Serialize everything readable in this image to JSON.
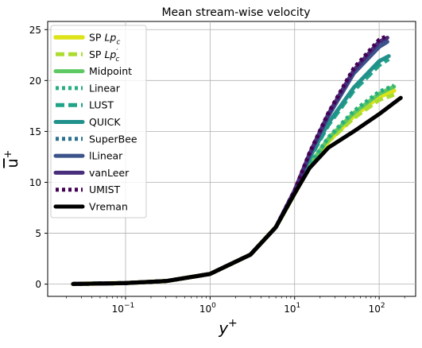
{
  "chart_data": {
    "type": "line",
    "title": "Mean stream-wise velocity",
    "xlabel": "y",
    "xlabel_sup": "+",
    "ylabel": "u",
    "ylabel_sup": "+",
    "xscale": "log",
    "xlim": [
      0.012,
      270
    ],
    "ylim": [
      -1.2,
      25.8
    ],
    "xticks": [
      {
        "value": 0.1,
        "base": "10",
        "exp": "−1"
      },
      {
        "value": 1,
        "base": "10",
        "exp": "0"
      },
      {
        "value": 10,
        "base": "10",
        "exp": "1"
      },
      {
        "value": 100,
        "base": "10",
        "exp": "2"
      }
    ],
    "yticks": [
      {
        "value": 0,
        "label": "0"
      },
      {
        "value": 5,
        "label": "5"
      },
      {
        "value": 10,
        "label": "10"
      },
      {
        "value": 15,
        "label": "15"
      },
      {
        "value": 20,
        "label": "20"
      },
      {
        "value": 25,
        "label": "25"
      }
    ],
    "grid": true,
    "legend_position": "upper-left",
    "series": [
      {
        "name": "SP Lp",
        "name_sub": "c",
        "name_prime": false,
        "color": "#dde318",
        "dash": "solid",
        "width": 5.5,
        "x": [
          0.024,
          0.1,
          0.3,
          1,
          3,
          6,
          10,
          15,
          25,
          50,
          100,
          150
        ],
        "y": [
          0.02,
          0.1,
          0.3,
          1.0,
          2.9,
          5.6,
          8.9,
          11.6,
          14.0,
          16.5,
          18.4,
          19.0
        ]
      },
      {
        "name": "SP Lp",
        "name_sub": "c",
        "name_prime": true,
        "color": "#addc30",
        "dash": "dash",
        "width": 5,
        "x": [
          0.024,
          0.1,
          0.3,
          1,
          3,
          6,
          10,
          15,
          25,
          50,
          100,
          150
        ],
        "y": [
          0.02,
          0.1,
          0.3,
          1.0,
          2.9,
          5.6,
          8.9,
          11.6,
          14.0,
          16.3,
          18.1,
          18.6
        ]
      },
      {
        "name": "Midpoint",
        "color": "#5ec962",
        "dash": "solid",
        "width": 5,
        "x": [
          0.024,
          0.1,
          0.3,
          1,
          3,
          6,
          10,
          15,
          25,
          50,
          100,
          150
        ],
        "y": [
          0.02,
          0.1,
          0.3,
          1.0,
          2.9,
          5.6,
          8.9,
          11.7,
          14.3,
          16.8,
          18.7,
          19.4
        ]
      },
      {
        "name": "Linear",
        "color": "#28ae80",
        "dash": "dot",
        "width": 5,
        "x": [
          0.024,
          0.1,
          0.3,
          1,
          3,
          6,
          10,
          15,
          25,
          50,
          100,
          150
        ],
        "y": [
          0.02,
          0.1,
          0.3,
          1.0,
          2.9,
          5.6,
          8.9,
          11.7,
          14.4,
          17.0,
          18.9,
          19.5
        ]
      },
      {
        "name": "LUST",
        "color": "#20a386",
        "dash": "dash",
        "width": 5,
        "x": [
          0.024,
          0.1,
          0.3,
          1,
          3,
          6,
          10,
          15,
          25,
          50,
          100,
          130
        ],
        "y": [
          0.02,
          0.1,
          0.3,
          1.0,
          2.9,
          5.6,
          9.0,
          12.3,
          15.6,
          19.0,
          21.5,
          22.1
        ]
      },
      {
        "name": "QUICK",
        "color": "#21918c",
        "dash": "solid",
        "width": 5,
        "x": [
          0.024,
          0.1,
          0.3,
          1,
          3,
          6,
          10,
          15,
          25,
          50,
          100,
          130
        ],
        "y": [
          0.02,
          0.1,
          0.3,
          1.0,
          2.9,
          5.6,
          9.0,
          12.4,
          15.8,
          19.3,
          21.9,
          22.4
        ]
      },
      {
        "name": "SuperBee",
        "color": "#2c728e",
        "dash": "dot",
        "width": 5,
        "x": [
          0.024,
          0.1,
          0.3,
          1,
          3,
          6,
          10,
          15,
          25,
          50,
          100,
          125
        ],
        "y": [
          0.02,
          0.1,
          0.3,
          1.0,
          2.9,
          5.6,
          9.1,
          12.7,
          16.5,
          20.8,
          23.5,
          24.0
        ]
      },
      {
        "name": "lLinear",
        "color": "#3b528b",
        "dash": "solid",
        "width": 5,
        "x": [
          0.024,
          0.1,
          0.3,
          1,
          3,
          6,
          10,
          15,
          25,
          50,
          100,
          125
        ],
        "y": [
          0.02,
          0.1,
          0.3,
          1.0,
          2.9,
          5.6,
          9.1,
          12.7,
          16.5,
          20.7,
          23.3,
          23.8
        ]
      },
      {
        "name": "vanLeer",
        "color": "#472d7b",
        "dash": "solid",
        "width": 5,
        "x": [
          0.024,
          0.1,
          0.3,
          1,
          3,
          6,
          10,
          15,
          25,
          50,
          100,
          125
        ],
        "y": [
          0.02,
          0.1,
          0.3,
          1.0,
          2.9,
          5.6,
          9.2,
          12.8,
          16.7,
          21.0,
          23.8,
          24.2
        ]
      },
      {
        "name": "UMIST",
        "color": "#440154",
        "dash": "dot",
        "width": 5,
        "x": [
          0.024,
          0.1,
          0.3,
          1,
          3,
          6,
          10,
          15,
          25,
          50,
          100,
          125
        ],
        "y": [
          0.02,
          0.1,
          0.3,
          1.0,
          2.9,
          5.6,
          9.2,
          12.9,
          16.8,
          21.2,
          24.0,
          24.4
        ]
      },
      {
        "name": "Vreman",
        "color": "#000000",
        "dash": "solid",
        "width": 5,
        "x": [
          0.024,
          0.1,
          0.3,
          1,
          3,
          6,
          10,
          15,
          25,
          50,
          100,
          150,
          180
        ],
        "y": [
          0.02,
          0.1,
          0.3,
          1.0,
          2.9,
          5.6,
          8.9,
          11.4,
          13.4,
          15.0,
          16.7,
          17.8,
          18.3
        ]
      }
    ]
  }
}
